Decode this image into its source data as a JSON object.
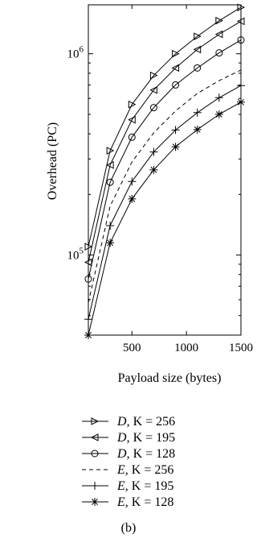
{
  "chart_data": {
    "type": "line",
    "xlabel": "Payload size (bytes)",
    "ylabel": "Overhead (PC)",
    "x": [
      100,
      300,
      500,
      700,
      900,
      1100,
      1300,
      1500
    ],
    "xlim": [
      100,
      1500
    ],
    "ylim": [
      40000,
      1750000
    ],
    "yscale": "log",
    "xticks": [
      {
        "value": 500,
        "label": "500"
      },
      {
        "value": 1000,
        "label": "1000"
      },
      {
        "value": 1500,
        "label": "1500"
      }
    ],
    "yticks": [
      {
        "value": 100000,
        "base": "10",
        "exp": "5"
      },
      {
        "value": 1000000,
        "base": "10",
        "exp": "6"
      }
    ],
    "grid": false,
    "legend_position": "below",
    "caption": "(b)",
    "series": [
      {
        "name": "D, K = 256",
        "label_var": "D",
        "label_rest": ", K = 256",
        "marker": "triangle-right",
        "dash": false,
        "values": [
          110000,
          330000,
          560000,
          780000,
          1000000,
          1220000,
          1460000,
          1700000
        ]
      },
      {
        "name": "D, K = 195",
        "label_var": "D",
        "label_rest": ", K = 195",
        "marker": "triangle-left",
        "dash": false,
        "values": [
          92000,
          280000,
          470000,
          660000,
          850000,
          1050000,
          1250000,
          1450000
        ]
      },
      {
        "name": "D, K = 128",
        "label_var": "D",
        "label_rest": ", K = 128",
        "marker": "circle",
        "dash": false,
        "values": [
          76000,
          230000,
          385000,
          540000,
          700000,
          850000,
          1010000,
          1170000
        ]
      },
      {
        "name": "E, K = 256",
        "label_var": "E",
        "label_rest": ", K = 256",
        "marker": "none",
        "dash": true,
        "values": [
          58000,
          175000,
          290000,
          405000,
          520000,
          635000,
          735000,
          830000
        ]
      },
      {
        "name": "E, K = 195",
        "label_var": "E",
        "label_rest": ", K = 195",
        "marker": "plus",
        "dash": false,
        "values": [
          48000,
          140000,
          232000,
          325000,
          418000,
          510000,
          605000,
          695000
        ]
      },
      {
        "name": "E, K = 128",
        "label_var": "E",
        "label_rest": ", K = 128",
        "marker": "asterisk",
        "dash": false,
        "values": [
          40000,
          115000,
          190000,
          265000,
          345000,
          420000,
          500000,
          575000
        ]
      }
    ]
  }
}
